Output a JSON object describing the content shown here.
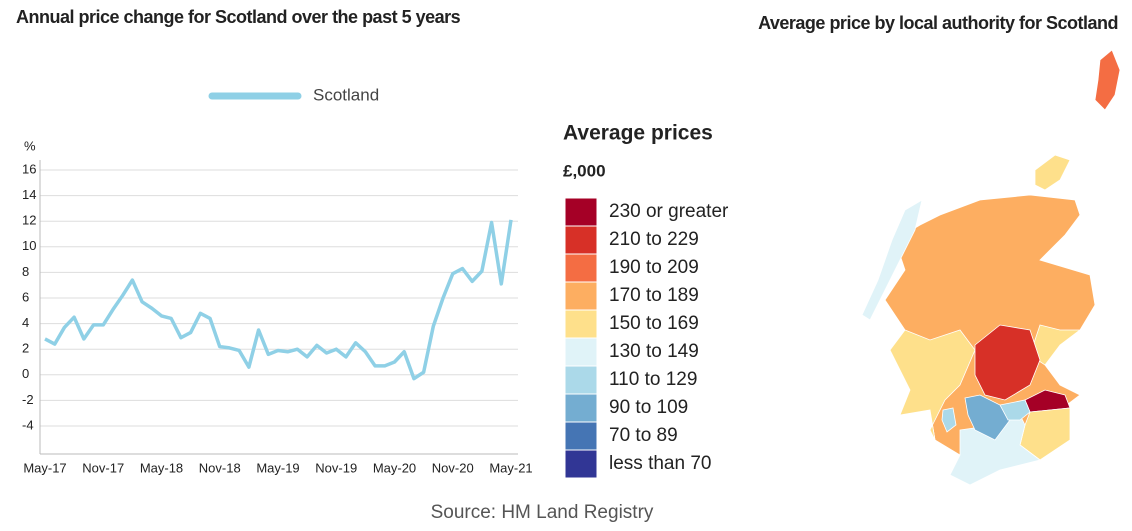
{
  "chart_data": {
    "type": "line",
    "title": "Annual price change for Scotland over the past 5 years",
    "y_label": "%",
    "categories": [
      "May-17",
      null,
      null,
      null,
      null,
      null,
      "Nov-17",
      null,
      null,
      null,
      null,
      null,
      "May-18",
      null,
      null,
      null,
      null,
      null,
      "Nov-18",
      null,
      null,
      null,
      null,
      null,
      "May-19",
      null,
      null,
      null,
      null,
      null,
      "Nov-19",
      null,
      null,
      null,
      null,
      null,
      "May-20",
      null,
      null,
      null,
      null,
      null,
      "Nov-20",
      null,
      null,
      null,
      null,
      null,
      "May-21"
    ],
    "series": [
      {
        "name": "Scotland",
        "color": "#8fd0e6",
        "values": [
          2.8,
          2.4,
          3.7,
          4.5,
          2.8,
          3.9,
          3.9,
          5.1,
          6.2,
          7.4,
          5.7,
          5.2,
          4.6,
          4.4,
          2.9,
          3.3,
          4.8,
          4.4,
          2.2,
          2.1,
          1.9,
          0.6,
          3.5,
          1.6,
          1.9,
          1.8,
          2.0,
          1.4,
          2.3,
          1.7,
          2.0,
          1.4,
          2.5,
          1.8,
          0.7,
          0.7,
          1.0,
          1.8,
          -0.3,
          0.2,
          3.8,
          6.0,
          7.9,
          8.3,
          7.3,
          8.1,
          11.9,
          7.1,
          12.1
        ]
      }
    ],
    "ylim": [
      -4,
      16
    ],
    "yticks": [
      -4,
      -2,
      0,
      2,
      4,
      6,
      8,
      10,
      12,
      14,
      16
    ],
    "grid": true
  },
  "map": {
    "title": "Average price by local authority for Scotland",
    "legend_title": "Average prices",
    "legend_subtitle": "£,000",
    "items": [
      {
        "label": "230 or greater",
        "color": "#a50026"
      },
      {
        "label": "210 to 229",
        "color": "#d73027"
      },
      {
        "label": "190 to 209",
        "color": "#f46d43"
      },
      {
        "label": "170 to 189",
        "color": "#fdae61"
      },
      {
        "label": "150 to 169",
        "color": "#fee08b"
      },
      {
        "label": "130 to 149",
        "color": "#e0f3f8"
      },
      {
        "label": "110 to 129",
        "color": "#abd9e9"
      },
      {
        "label": "90 to 109",
        "color": "#74add1"
      },
      {
        "label": "70 to 89",
        "color": "#4575b4"
      },
      {
        "label": "less than 70",
        "color": "#313695"
      }
    ]
  },
  "source": "Source: HM Land Registry"
}
